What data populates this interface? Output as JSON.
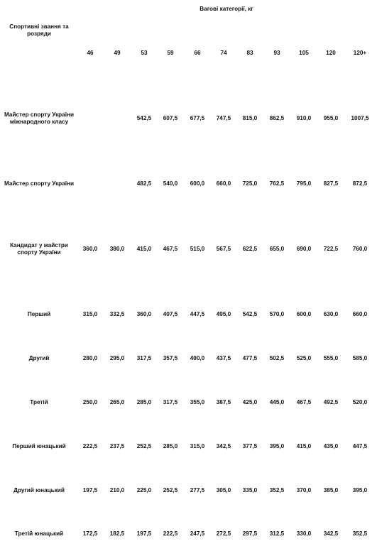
{
  "table": {
    "title": "Вагові категорії, кг",
    "row_header": "Спортивні звання та розряди",
    "columns": [
      "46",
      "49",
      "53",
      "59",
      "66",
      "74",
      "83",
      "93",
      "105",
      "120",
      "120+"
    ],
    "rows": [
      {
        "label": "Майстер спорту України міжнародного класу",
        "values": [
          "",
          "",
          "542,5",
          "607,5",
          "677,5",
          "747,5",
          "815,0",
          "862,5",
          "910,0",
          "955,0",
          "1007,5"
        ]
      },
      {
        "label": "Майстер спорту України",
        "values": [
          "",
          "",
          "482,5",
          "540,0",
          "600,0",
          "660,0",
          "725,0",
          "762,5",
          "795,0",
          "827,5",
          "872,5"
        ]
      },
      {
        "label": "Кандидат у майстри спорту України",
        "values": [
          "360,0",
          "380,0",
          "415,0",
          "467,5",
          "515,0",
          "567,5",
          "622,5",
          "655,0",
          "690,0",
          "722,5",
          "760,0"
        ]
      },
      {
        "label": "Перший",
        "values": [
          "315,0",
          "332,5",
          "360,0",
          "407,5",
          "447,5",
          "495,0",
          "542,5",
          "570,0",
          "600,0",
          "630,0",
          "660,0"
        ]
      },
      {
        "label": "Другий",
        "values": [
          "280,0",
          "295,0",
          "317,5",
          "357,5",
          "400,0",
          "437,5",
          "477,5",
          "502,5",
          "525,0",
          "555,0",
          "585,0"
        ]
      },
      {
        "label": "Третій",
        "values": [
          "250,0",
          "265,0",
          "285,0",
          "317,5",
          "355,0",
          "387,5",
          "425,0",
          "445,0",
          "467,5",
          "492,5",
          "520,0"
        ]
      },
      {
        "label": "Перший юнацький",
        "values": [
          "222,5",
          "237,5",
          "252,5",
          "285,0",
          "315,0",
          "342,5",
          "377,5",
          "395,0",
          "415,0",
          "435,0",
          "447,5"
        ]
      },
      {
        "label": "Другий юнацький",
        "values": [
          "197,5",
          "210,0",
          "225,0",
          "252,5",
          "277,5",
          "305,0",
          "335,0",
          "352,5",
          "370,0",
          "385,0",
          "395,0"
        ]
      },
      {
        "label": "Третій юнацький",
        "values": [
          "172,5",
          "182,5",
          "197,5",
          "222,5",
          "247,5",
          "272,5",
          "297,5",
          "312,5",
          "330,0",
          "342,5",
          "352,5"
        ]
      }
    ]
  }
}
